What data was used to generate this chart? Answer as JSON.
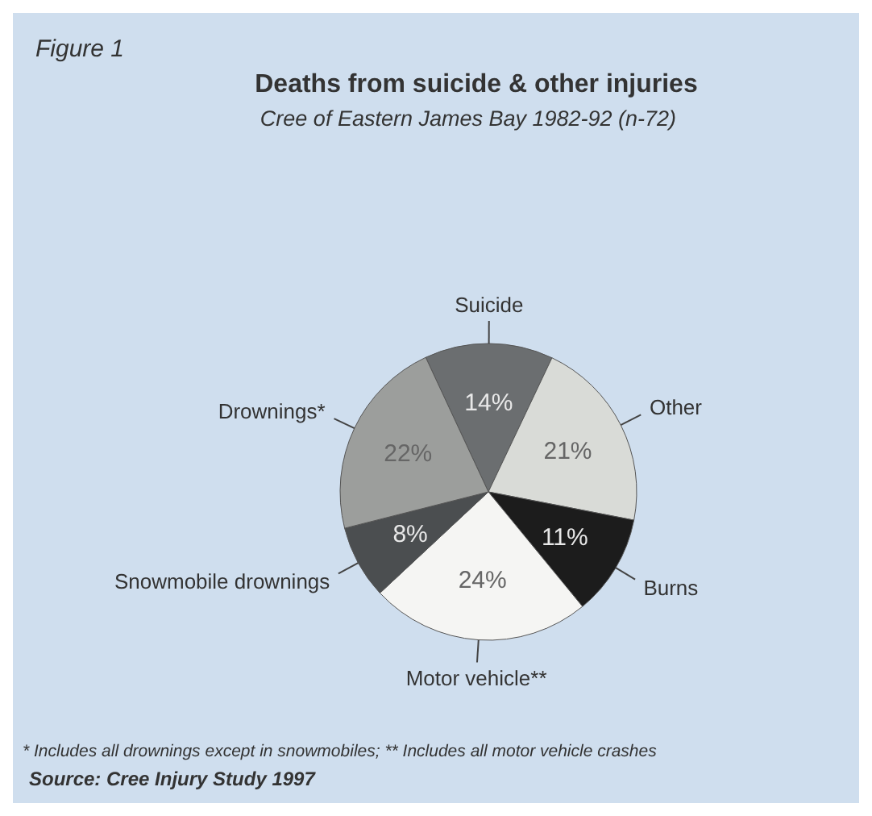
{
  "chart_data": {
    "type": "pie",
    "title": "Deaths from suicide & other injuries",
    "subtitle": "Cree of Eastern James Bay 1982-92 (n-72)",
    "categories": [
      "Suicide",
      "Other",
      "Burns",
      "Motor vehicle**",
      "Snowmobile drownings",
      "Drownings*"
    ],
    "values": [
      14,
      21,
      11,
      24,
      8,
      22
    ],
    "colors": [
      "#6b6e70",
      "#d9dbd7",
      "#1c1c1c",
      "#f5f5f3",
      "#4b4e50",
      "#9c9e9c"
    ],
    "value_labels": [
      "14%",
      "21%",
      "11%",
      "24%",
      "8%",
      "22%"
    ],
    "annotations": [
      "Figure 1",
      "* Includes all drownings except in snowmobiles; ** Includes all motor vehicle crashes",
      "Source: Cree Injury Study 1997"
    ]
  }
}
